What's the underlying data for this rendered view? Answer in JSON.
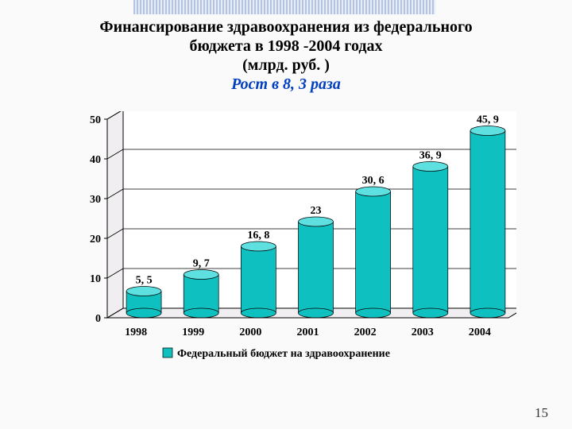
{
  "title_line1": "Финансирование здравоохранения из федерального",
  "title_line2": "бюджета в 1998 ‑2004 годах",
  "title_line3": "(млрд. руб. )",
  "subtitle": "Рост в 8, 3 раза",
  "chart": {
    "type": "3d-cylinder-bar",
    "categories": [
      "1998",
      "1999",
      "2000",
      "2001",
      "2002",
      "2003",
      "2004"
    ],
    "values": [
      5.5,
      9.7,
      16.8,
      23,
      30.6,
      36.9,
      45.9
    ],
    "labels": [
      "5, 5",
      "9, 7",
      "16, 8",
      "23",
      "30, 6",
      "36, 9",
      "45, 9"
    ],
    "ylim": [
      0,
      50
    ],
    "ytick_step": 10,
    "yticks": [
      "0",
      "10",
      "20",
      "30",
      "40",
      "50"
    ],
    "series_color": "#0fc0c0",
    "series_top_color": "#5ee0e0",
    "plot_bg": "#ffffff",
    "wall_bg": "#f0eef0",
    "grid_color": "#000000",
    "axis_fontsize": 14,
    "axis_fontweight": "bold",
    "label_fontsize": 14,
    "legend_label": "Федеральный бюджет на здравоохранение",
    "legend_swatch": "#0fc0c0",
    "depth_dx": 20,
    "depth_dy": -12,
    "bar_rx": 22
  },
  "page_number": "15"
}
